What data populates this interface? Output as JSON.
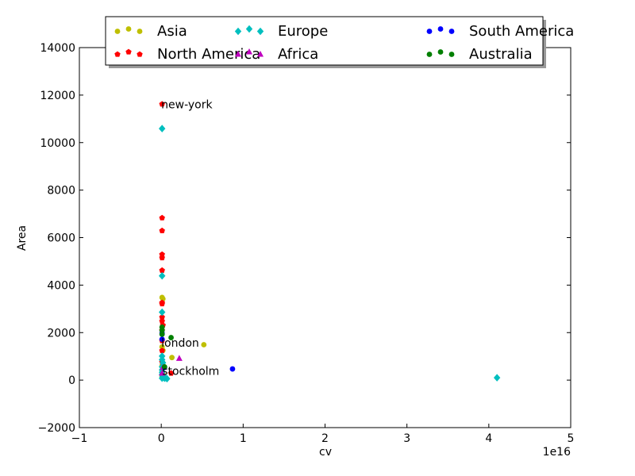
{
  "chart_data": {
    "type": "scatter",
    "title": "",
    "xlabel": "cv",
    "ylabel": "Area",
    "x_offset_label": "1e16",
    "xlim": [
      -1,
      5
    ],
    "ylim": [
      -2000,
      14000
    ],
    "x_ticks": [
      -1,
      0,
      1,
      2,
      3,
      4,
      5
    ],
    "x_tick_labels": [
      "−1",
      "0",
      "1",
      "2",
      "3",
      "4",
      "5"
    ],
    "y_ticks": [
      -2000,
      0,
      2000,
      4000,
      6000,
      8000,
      10000,
      12000,
      14000
    ],
    "y_tick_labels": [
      "−2000",
      "0",
      "2000",
      "4000",
      "6000",
      "8000",
      "10000",
      "12000",
      "14000"
    ],
    "grid": false,
    "legend": {
      "placement": "top",
      "columns": 3
    },
    "series": [
      {
        "name": "Asia",
        "color": "#bfbf00",
        "marker": "circle",
        "points": [
          [
            0.01,
            3480
          ],
          [
            0.02,
            3420
          ],
          [
            0.01,
            1400
          ],
          [
            0.02,
            1250
          ],
          [
            0.13,
            950
          ],
          [
            0.52,
            1490
          ],
          [
            0.01,
            600
          ],
          [
            0.02,
            250
          ],
          [
            0.01,
            150
          ]
        ]
      },
      {
        "name": "North America",
        "color": "#ff0000",
        "marker": "pentagon",
        "points": [
          [
            0.01,
            11620
          ],
          [
            0.01,
            6830
          ],
          [
            0.01,
            6290
          ],
          [
            0.01,
            5290
          ],
          [
            0.01,
            5150
          ],
          [
            0.01,
            4620
          ],
          [
            0.01,
            3260
          ],
          [
            0.01,
            3210
          ],
          [
            0.01,
            2650
          ],
          [
            0.01,
            2480
          ],
          [
            0.02,
            2310
          ],
          [
            0.01,
            2090
          ],
          [
            0.01,
            1660
          ],
          [
            0.01,
            1240
          ],
          [
            0.01,
            760
          ],
          [
            0.12,
            290
          ],
          [
            0.02,
            180
          ]
        ]
      },
      {
        "name": "Europe",
        "color": "#00bfbf",
        "marker": "diamond",
        "points": [
          [
            0.01,
            10590
          ],
          [
            0.01,
            4390
          ],
          [
            0.01,
            2860
          ],
          [
            0.01,
            1010
          ],
          [
            0.01,
            860
          ],
          [
            0.02,
            730
          ],
          [
            0.01,
            560
          ],
          [
            0.01,
            430
          ],
          [
            0.01,
            330
          ],
          [
            0.01,
            240
          ],
          [
            0.02,
            160
          ],
          [
            0.03,
            120
          ],
          [
            0.01,
            80
          ],
          [
            0.04,
            80
          ],
          [
            0.07,
            60
          ],
          [
            0.05,
            100
          ],
          [
            4.1,
            100
          ]
        ]
      },
      {
        "name": "Africa",
        "color": "#bf00bf",
        "marker": "triangle",
        "points": [
          [
            0.22,
            910
          ],
          [
            0.02,
            530
          ],
          [
            0.01,
            290
          ]
        ]
      },
      {
        "name": "South America",
        "color": "#0000ff",
        "marker": "circle",
        "points": [
          [
            0.01,
            1980
          ],
          [
            0.01,
            1720
          ],
          [
            0.04,
            540
          ],
          [
            0.87,
            470
          ]
        ]
      },
      {
        "name": "Australia",
        "color": "#007f00",
        "marker": "circle",
        "points": [
          [
            0.01,
            2230
          ],
          [
            0.01,
            2100
          ],
          [
            0.01,
            1930
          ],
          [
            0.12,
            1790
          ],
          [
            0.04,
            560
          ]
        ]
      }
    ],
    "annotations": [
      {
        "text": "new-york",
        "x": 0.0,
        "y": 11620
      },
      {
        "text": "london",
        "x": 0.0,
        "y": 1580
      },
      {
        "text": "stockholm",
        "x": 0.01,
        "y": 380
      }
    ]
  }
}
